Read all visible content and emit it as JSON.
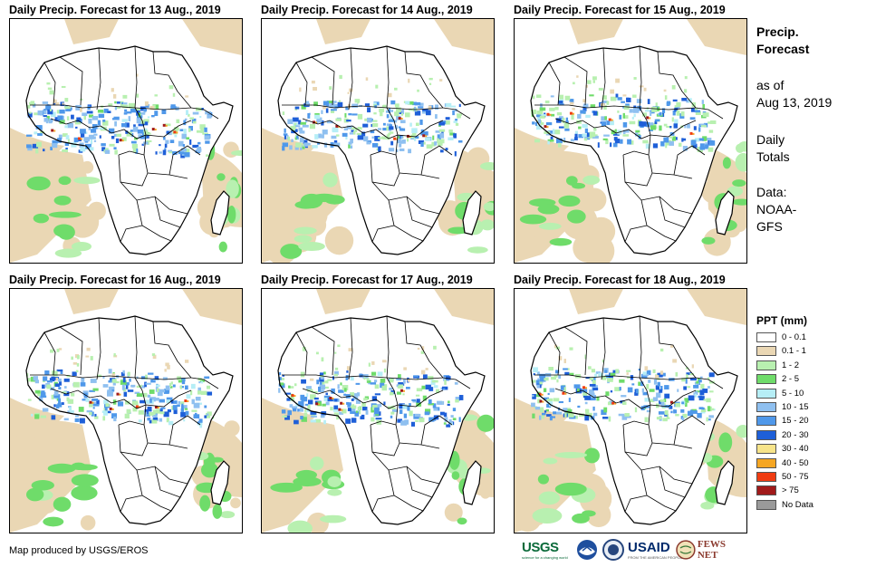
{
  "panels": [
    {
      "title": "Daily Precip. Forecast for 13 Aug., 2019"
    },
    {
      "title": "Daily Precip. Forecast for 14 Aug., 2019"
    },
    {
      "title": "Daily Precip. Forecast for 15 Aug., 2019"
    },
    {
      "title": "Daily Precip. Forecast for 16 Aug., 2019"
    },
    {
      "title": "Daily Precip. Forecast for 17 Aug., 2019"
    },
    {
      "title": "Daily Precip. Forecast for 18 Aug., 2019"
    }
  ],
  "side": {
    "title_line1": "Precip.",
    "title_line2": "Forecast",
    "asof_line1": "as of",
    "asof_line2": "Aug 13, 2019",
    "totals_line1": "Daily",
    "totals_line2": "Totals",
    "data_line1": "Data:",
    "data_line2": "NOAA-",
    "data_line3": "GFS"
  },
  "legend": {
    "title": "PPT (mm)",
    "items": [
      {
        "label": "0 - 0.1",
        "color": "#ffffff"
      },
      {
        "label": "0.1 - 1",
        "color": "#ead7b4"
      },
      {
        "label": "1 - 2",
        "color": "#b8f0b0"
      },
      {
        "label": "2 - 5",
        "color": "#6fdc6a"
      },
      {
        "label": "5 - 10",
        "color": "#b6eef6"
      },
      {
        "label": "10 - 15",
        "color": "#8fc0f0"
      },
      {
        "label": "15 - 20",
        "color": "#4f98ea"
      },
      {
        "label": "20 - 30",
        "color": "#1e5fd8"
      },
      {
        "label": "30 - 40",
        "color": "#f7e48a"
      },
      {
        "label": "40 - 50",
        "color": "#f5a623"
      },
      {
        "label": "50 - 75",
        "color": "#f03c12"
      },
      {
        "label": "> 75",
        "color": "#a11a1a"
      },
      {
        "label": "No Data",
        "color": "#9a9a9a"
      }
    ]
  },
  "footer": {
    "credit": "Map produced by USGS/EROS"
  },
  "logos": {
    "usgs": "USGS",
    "usgs_tagline": "science for a changing world",
    "noaa": "NOAA",
    "usaid": "USAID",
    "usaid_tagline": "FROM THE AMERICAN PEOPLE",
    "fews": "FEWS NET"
  }
}
